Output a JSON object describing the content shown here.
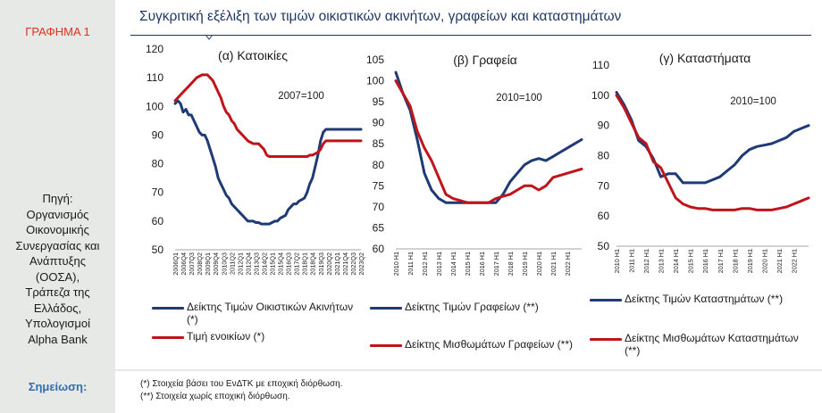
{
  "sidebar": {
    "graph_label": "ΓΡΑΦΗΜΑ 1",
    "source_lines": [
      "Πηγή:",
      "Οργανισμός",
      "Οικονομικής",
      "Συνεργασίας και",
      "Ανάπτυξης",
      "(ΟΟΣΑ),",
      "Τράπεζα της",
      "Ελλάδος,",
      "Υπολογισμοί",
      "Alpha Bank"
    ],
    "note_label": "Σημείωση:"
  },
  "title": "Συγκριτική εξέλιξη των τιμών οικιστικών ακινήτων, γραφείων και καταστημάτων",
  "notes": [
    "(*) Στοιχεία βάσει του ΕνΔΤΚ με εποχική διόρθωση.",
    "(**) Στοιχεία χωρίς εποχική διόρθωση."
  ],
  "colors": {
    "navy": "#1f3a75",
    "red": "#c0141b"
  },
  "chart_data": [
    {
      "type": "line",
      "title": "(α) Κατοικίες",
      "annotation": "2007=100",
      "ylim": [
        50,
        120
      ],
      "yticks": [
        50,
        60,
        70,
        80,
        90,
        100,
        110,
        120
      ],
      "x_tick_labels": [
        "2006Q1",
        "2006Q4",
        "2007Q3",
        "2008Q2",
        "2009Q1",
        "2009Q4",
        "2010Q3",
        "2011Q2",
        "2012Q1",
        "2012Q4",
        "2013Q3",
        "2014Q2",
        "2015Q1",
        "2015Q4",
        "2016Q3",
        "2017Q2",
        "2018Q1",
        "2018Q4",
        "2019Q3",
        "2020Q2",
        "2021Q1",
        "2021Q4",
        "2022Q3",
        "2023Q2"
      ],
      "series": [
        {
          "name": "Δείκτης Τιμών Οικιστικών Ακινήτων (*)",
          "color": "#1f3a75",
          "x": [
            0,
            1,
            2,
            3,
            4,
            5,
            6,
            7,
            8,
            9,
            10,
            11,
            12,
            13,
            14,
            15,
            16,
            17,
            18,
            19,
            20,
            21,
            22,
            23,
            24,
            25,
            26,
            27,
            28,
            29,
            30,
            31,
            32,
            33,
            34,
            35,
            36,
            37,
            38,
            39,
            40,
            41,
            42,
            43,
            44,
            45,
            46,
            47,
            48,
            49,
            50,
            51,
            52,
            53,
            54,
            55,
            56,
            57,
            58,
            59,
            60,
            61,
            62,
            63,
            64,
            65,
            66,
            67,
            68,
            69
          ],
          "values": [
            101,
            102,
            101,
            98,
            99,
            97,
            97,
            95,
            93,
            91,
            90,
            90,
            88,
            85,
            82,
            79,
            75,
            73,
            71,
            69,
            68,
            66,
            65,
            64,
            63,
            62,
            61,
            60,
            60,
            60,
            59.5,
            59.5,
            59,
            59,
            59,
            59,
            59.5,
            60,
            60,
            61,
            61.5,
            62,
            64,
            65,
            66,
            66,
            67,
            67.5,
            68,
            70,
            73,
            75,
            79,
            83,
            88,
            91,
            92,
            92,
            92,
            92,
            92,
            92,
            92,
            92,
            92,
            92,
            92,
            92,
            92,
            92
          ]
        },
        {
          "name": "Τιμή ενοικίων (*)",
          "color": "#c0141b",
          "x": [
            0,
            1,
            2,
            3,
            4,
            5,
            6,
            7,
            8,
            9,
            10,
            11,
            12,
            13,
            14,
            15,
            16,
            17,
            18,
            19,
            20,
            21,
            22,
            23,
            24,
            25,
            26,
            27,
            28,
            29,
            30,
            31,
            32,
            33,
            34,
            35,
            36,
            37,
            38,
            39,
            40,
            41,
            42,
            43,
            44,
            45,
            46,
            47,
            48,
            49,
            50,
            51,
            52,
            53,
            54,
            55,
            56,
            57,
            58,
            59,
            60,
            61,
            62,
            63,
            64,
            65,
            66,
            67,
            68,
            69
          ],
          "values": [
            102,
            103,
            104,
            105,
            106,
            107,
            108,
            109,
            110,
            110.5,
            111,
            111,
            111,
            110,
            109,
            107,
            105,
            103,
            100,
            98,
            97,
            95,
            94,
            92,
            91,
            90,
            89,
            88,
            87.5,
            87,
            87,
            87,
            86,
            85,
            83,
            82.5,
            82.5,
            82.5,
            82.5,
            82.5,
            82.5,
            82.5,
            82.5,
            82.5,
            82.5,
            82.5,
            82.5,
            82.5,
            82.5,
            82.5,
            83,
            83,
            83.5,
            84,
            85,
            87,
            88,
            88,
            88,
            88,
            88,
            88,
            88,
            88,
            88,
            88,
            88,
            88,
            88,
            88
          ]
        }
      ]
    },
    {
      "type": "line",
      "title": "(β) Γραφεία",
      "annotation": "2010=100",
      "ylim": [
        60,
        105
      ],
      "yticks": [
        60,
        65,
        70,
        75,
        80,
        85,
        90,
        95,
        100,
        105
      ],
      "x_tick_labels": [
        "2010 H1",
        "2011 H1",
        "2012 H1",
        "2013 H1",
        "2014 H1",
        "2015 H1",
        "2016 H1",
        "2017 H1",
        "2018 H1",
        "2019 H1",
        "2020 H1",
        "2021 H1",
        "2022 H1"
      ],
      "series": [
        {
          "name": "Δείκτης Τιμών Γραφείων (**)",
          "color": "#1f3a75",
          "x": [
            0,
            0.5,
            1,
            1.5,
            2,
            2.5,
            3,
            3.5,
            4,
            4.5,
            5,
            5.5,
            6,
            6.5,
            7,
            7.5,
            8,
            8.5,
            9,
            9.5,
            10,
            10.5,
            11,
            11.5,
            12,
            12.5,
            13
          ],
          "values": [
            102,
            97,
            93,
            86,
            78,
            74,
            72,
            71,
            71,
            71,
            71,
            71,
            71,
            71,
            71,
            73,
            76,
            78,
            80,
            81,
            81.5,
            81,
            82,
            83,
            84,
            85,
            86
          ]
        },
        {
          "name": "Δείκτης Μισθωμάτων Γραφείων (**)",
          "color": "#c0141b",
          "x": [
            0,
            0.5,
            1,
            1.5,
            2,
            2.5,
            3,
            3.5,
            4,
            4.5,
            5,
            5.5,
            6,
            6.5,
            7,
            7.5,
            8,
            8.5,
            9,
            9.5,
            10,
            10.5,
            11,
            11.5,
            12,
            12.5,
            13
          ],
          "values": [
            100,
            97,
            94,
            88,
            84,
            81,
            77,
            73,
            72,
            71.5,
            71,
            71,
            71,
            71,
            72,
            72.5,
            73,
            74,
            75,
            75,
            74,
            75,
            77,
            77.5,
            78,
            78.5,
            79
          ]
        }
      ]
    },
    {
      "type": "line",
      "title": "(γ) Καταστήματα",
      "annotation": "2010=100",
      "ylim": [
        50,
        110
      ],
      "yticks": [
        50,
        60,
        70,
        80,
        90,
        100,
        110
      ],
      "x_tick_labels": [
        "2010 H1",
        "2011 H1",
        "2012 H1",
        "2013 H1",
        "2014 H1",
        "2015 H1",
        "2016 H1",
        "2017 H1",
        "2018 H1",
        "2019 H1",
        "2020 H1",
        "2021 H1",
        "2022 H1"
      ],
      "series": [
        {
          "name": "Δείκτης Τιμών Καταστημάτων (**)",
          "color": "#1f3a75",
          "x": [
            0,
            0.5,
            1,
            1.5,
            2,
            2.5,
            3,
            3.5,
            4,
            4.5,
            5,
            5.5,
            6,
            6.5,
            7,
            7.5,
            8,
            8.5,
            9,
            9.5,
            10,
            10.5,
            11,
            11.5,
            12,
            12.5,
            13
          ],
          "values": [
            101,
            97,
            92,
            85,
            83,
            79,
            73,
            74,
            74,
            71,
            71,
            71,
            71,
            72,
            73,
            75,
            77,
            80,
            82,
            83,
            83.5,
            84,
            85,
            86,
            88,
            89,
            90
          ]
        },
        {
          "name": "Δείκτης Μισθωμάτων Καταστημάτων (**)",
          "color": "#c0141b",
          "x": [
            0,
            0.5,
            1,
            1.5,
            2,
            2.5,
            3,
            3.5,
            4,
            4.5,
            5,
            5.5,
            6,
            6.5,
            7,
            7.5,
            8,
            8.5,
            9,
            9.5,
            10,
            10.5,
            11,
            11.5,
            12,
            12.5,
            13
          ],
          "values": [
            100,
            96,
            91,
            86,
            84,
            78,
            76,
            71,
            66,
            64,
            63,
            62.5,
            62.5,
            62,
            62,
            62,
            62,
            62.5,
            62.5,
            62,
            62,
            62,
            62.5,
            63,
            64,
            65,
            66
          ]
        }
      ]
    }
  ],
  "legend": [
    {
      "label": "Δείκτης Τιμών Οικιστικών Ακινήτων (*)",
      "color": "#1f3a75"
    },
    {
      "label": "Τιμή ενοικίων (*)",
      "color": "#c0141b"
    },
    {
      "label": "Δείκτης Τιμών Γραφείων (**)",
      "color": "#1f3a75"
    },
    {
      "label": "Δείκτης Μισθωμάτων Γραφείων (**)",
      "color": "#c0141b"
    },
    {
      "label": "Δείκτης Τιμών Καταστημάτων (**)",
      "color": "#1f3a75"
    },
    {
      "label": "Δείκτης Μισθωμάτων Καταστημάτων (**)",
      "color": "#c0141b"
    }
  ]
}
